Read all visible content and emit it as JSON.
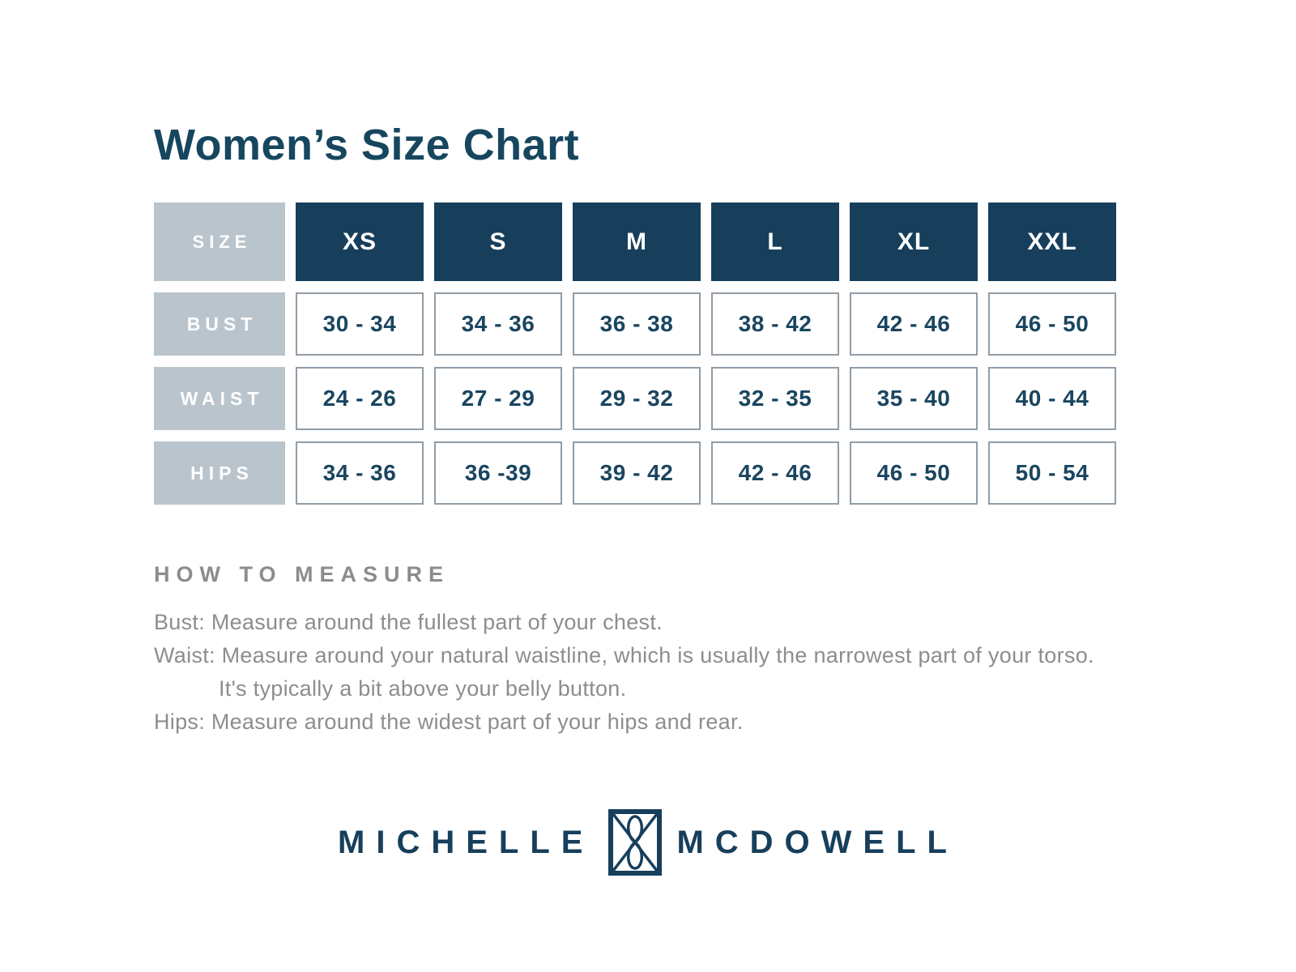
{
  "page": {
    "background": "#ffffff"
  },
  "colors": {
    "navy_header_bg": "#173f5c",
    "title_text": "#17465f",
    "label_cell_bg": "#b9c4cc",
    "value_cell_border": "#909da7",
    "value_text": "#1a4560",
    "gray_text": "#8d8d8d"
  },
  "title": "Women’s Size Chart",
  "size_table": {
    "corner_label": "SIZE",
    "columns": [
      "XS",
      "S",
      "M",
      "L",
      "XL",
      "XXL"
    ],
    "rows": [
      {
        "label": "BUST",
        "values": [
          "30 - 34",
          "34 - 36",
          "36 - 38",
          "38 - 42",
          "42 - 46",
          "46 - 50"
        ]
      },
      {
        "label": "WAIST",
        "values": [
          "24 - 26",
          "27 - 29",
          "29 - 32",
          "32 - 35",
          "35 - 40",
          "40 - 44"
        ]
      },
      {
        "label": "HIPS",
        "values": [
          "34 - 36",
          "36 -39",
          "39 - 42",
          "42 - 46",
          "46 - 50",
          "50 - 54"
        ]
      }
    ]
  },
  "how_to_measure": {
    "heading": "HOW TO MEASURE",
    "lines": [
      {
        "text": "Bust: Measure around the fullest part of your chest.",
        "indent": false
      },
      {
        "text": "Waist: Measure around your natural waistline, which is usually the narrowest part of your torso.",
        "indent": false
      },
      {
        "text": "It's typically a bit above your belly button.",
        "indent": true
      },
      {
        "text": "Hips: Measure around the widest part of your hips and rear.",
        "indent": false
      }
    ]
  },
  "brand": {
    "word_left": "MICHELLE",
    "word_right": "MCDOWELL",
    "icon": "monogram-icon"
  }
}
